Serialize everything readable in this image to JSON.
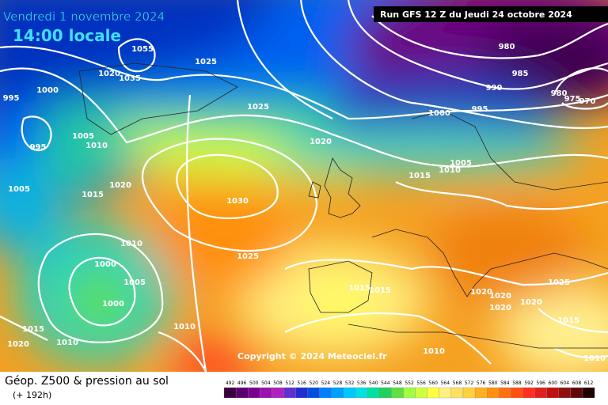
{
  "header": {
    "date": "Vendredi 1 novembre 2024",
    "time": "14:00 locale",
    "run": "Run GFS 12 Z du Jeudi 24 octobre 2024"
  },
  "copyright": "Copyright © 2024 Meteociel.fr",
  "isobars": [
    1055,
    1025,
    1020,
    1035,
    1000,
    995,
    1025,
    995,
    1005,
    1010,
    1020,
    1005,
    1015,
    1020,
    1030,
    1010,
    1025,
    1000,
    1005,
    1000,
    1015,
    1010,
    1020,
    1010,
    1000,
    995,
    985,
    990,
    980,
    980,
    975,
    970,
    1005,
    1010,
    1015,
    1015,
    1015,
    1020,
    1020,
    1020,
    1020,
    1025,
    1015,
    1010,
    1010
  ],
  "footer": {
    "title": "Géop. Z500 & pression au sol",
    "range": "(+ 192h)"
  },
  "legend": {
    "labels": [
      492,
      496,
      500,
      504,
      508,
      512,
      516,
      520,
      524,
      528,
      532,
      536,
      540,
      544,
      548,
      552,
      556,
      560,
      564,
      568,
      572,
      576,
      580,
      584,
      588,
      592,
      596,
      600,
      604,
      608,
      612
    ],
    "colors": [
      "#3a0040",
      "#5a0070",
      "#7a0090",
      "#9a10b0",
      "#b020c0",
      "#6030d0",
      "#2030d0",
      "#0050e0",
      "#0080ff",
      "#00a0ff",
      "#00c8ff",
      "#00e0e0",
      "#00e0a0",
      "#20d060",
      "#60e040",
      "#a0ff40",
      "#d0ff40",
      "#ffff40",
      "#fff080",
      "#ffe060",
      "#ffd040",
      "#ffb020",
      "#ff9010",
      "#ff7010",
      "#ff5010",
      "#ff3020",
      "#e02020",
      "#c01010",
      "#901010",
      "#600808",
      "#200000"
    ]
  }
}
